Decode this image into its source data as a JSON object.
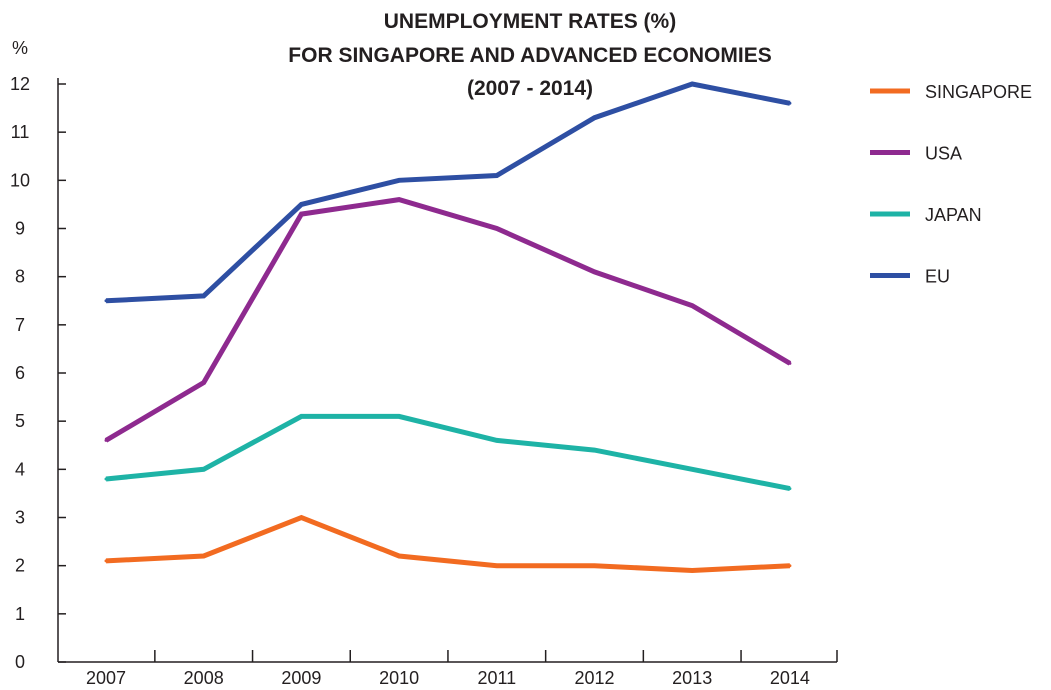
{
  "chart_data": {
    "type": "line",
    "title_lines": [
      "UNEMPLOYMENT RATES (%)",
      "FOR SINGAPORE AND ADVANCED ECONOMIES",
      "(2007 - 2014)"
    ],
    "ylabel": "%",
    "xlabel": "",
    "categories": [
      "2007",
      "2008",
      "2009",
      "2010",
      "2011",
      "2012",
      "2013",
      "2014"
    ],
    "yticks": [
      "0",
      "1",
      "2",
      "3",
      "4",
      "5",
      "6",
      "7",
      "8",
      "9",
      "10",
      "11",
      "12"
    ],
    "ylim": [
      0,
      12
    ],
    "grid": false,
    "legend_position": "right",
    "series": [
      {
        "name": "SINGAPORE",
        "color": "#f26b21",
        "values": [
          2.1,
          2.2,
          3.0,
          2.2,
          2.0,
          2.0,
          1.9,
          2.0
        ]
      },
      {
        "name": "USA",
        "color": "#8e2a8f",
        "values": [
          4.6,
          5.8,
          9.3,
          9.6,
          9.0,
          8.1,
          7.4,
          6.2
        ]
      },
      {
        "name": "JAPAN",
        "color": "#1eb3a6",
        "values": [
          3.8,
          4.0,
          5.1,
          5.1,
          4.6,
          4.4,
          4.0,
          3.6
        ]
      },
      {
        "name": "EU",
        "color": "#2e4fa3",
        "values": [
          7.5,
          7.6,
          9.5,
          10.0,
          10.1,
          11.3,
          12.0,
          11.6
        ]
      }
    ]
  }
}
